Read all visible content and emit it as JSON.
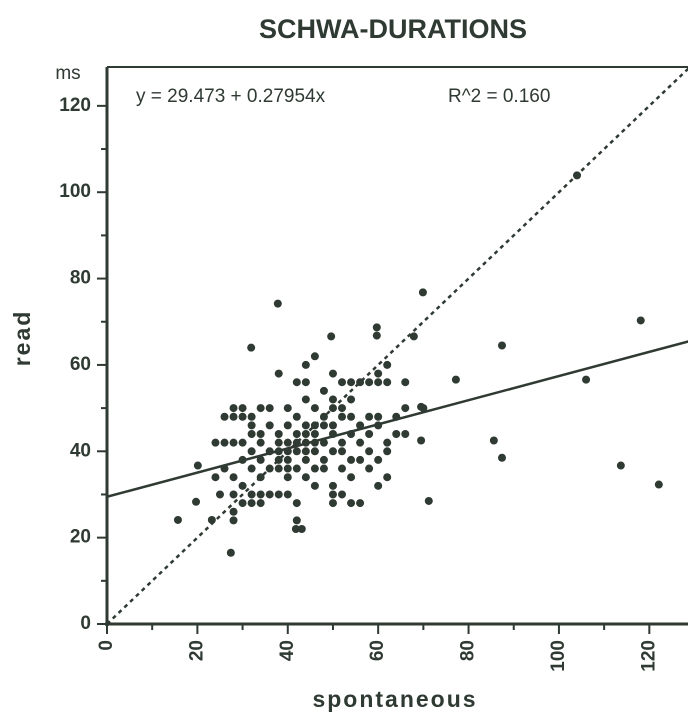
{
  "chart_data": {
    "type": "scatter",
    "title": "SCHWA-DURATIONS",
    "x_label": "spontaneous",
    "y_label": "read",
    "y_unit": "ms",
    "equation": "y = 29.473 + 0.27954x",
    "r_squared": "R^2 = 0.160",
    "fit": {
      "intercept": 29.473,
      "slope": 0.27954
    },
    "identity_line": true,
    "color": "#2f3a33",
    "xlim": [
      0,
      129
    ],
    "ylim": [
      0,
      129
    ],
    "xticks": [
      0,
      20,
      40,
      60,
      80,
      100,
      120
    ],
    "yticks": [
      0,
      20,
      40,
      60,
      80,
      100,
      120
    ],
    "x": [
      15.7,
      19.7,
      20.1,
      23.2,
      27.4,
      37.8,
      31.9,
      49.6,
      59.7,
      59.7,
      69.9,
      67.9,
      87.4,
      118.1,
      104,
      106,
      77.2,
      85.6,
      87.4,
      113.7,
      122.1,
      71.2,
      69.5,
      69.5,
      41.8,
      43.1,
      28,
      28,
      28,
      28,
      28,
      28,
      28,
      30,
      30,
      30,
      30,
      30,
      30,
      32,
      32,
      32,
      32,
      32,
      32,
      32,
      34,
      34,
      34,
      34,
      34,
      34,
      34,
      36,
      36,
      36,
      36,
      36,
      38,
      38,
      38,
      38,
      38,
      38,
      38,
      40,
      40,
      40,
      40,
      40,
      40,
      40,
      40,
      42,
      42,
      42,
      42,
      42,
      42,
      42,
      42,
      44,
      44,
      44,
      44,
      44,
      44,
      44,
      44,
      44,
      46,
      46,
      46,
      46,
      46,
      46,
      46,
      46,
      48,
      48,
      48,
      48,
      48,
      48,
      50,
      50,
      50,
      50,
      50,
      50,
      50,
      50,
      50,
      52,
      52,
      52,
      52,
      52,
      52,
      52,
      54,
      54,
      54,
      54,
      54,
      54,
      54,
      56,
      56,
      56,
      56,
      56,
      58,
      58,
      58,
      58,
      58,
      60,
      60,
      60,
      60,
      60,
      60,
      62,
      62,
      62,
      62,
      62,
      64,
      64,
      66,
      66,
      66,
      70,
      26,
      26,
      26,
      24,
      24,
      25
    ],
    "values": [
      24.1,
      28.3,
      36.7,
      24.1,
      16.5,
      74.2,
      64,
      66.6,
      68.7,
      66.8,
      76.8,
      66.6,
      64.5,
      70.3,
      103.9,
      56.6,
      56.6,
      42.5,
      38.5,
      36.7,
      32.3,
      28.5,
      42.5,
      50.3,
      22,
      22,
      48,
      50,
      42,
      34,
      30,
      26,
      24,
      42,
      38,
      32,
      28,
      48,
      50,
      44,
      40,
      36,
      30,
      28,
      46,
      48,
      50,
      44,
      42,
      34,
      30,
      28,
      38,
      46,
      40,
      36,
      30,
      50,
      58,
      44,
      40,
      38,
      36,
      30,
      42,
      50,
      46,
      42,
      40,
      38,
      36,
      34,
      30,
      56,
      48,
      44,
      42,
      40,
      36,
      28,
      24,
      60,
      56,
      52,
      46,
      44,
      42,
      40,
      38,
      34,
      62,
      50,
      46,
      44,
      42,
      40,
      36,
      32,
      54,
      48,
      46,
      42,
      38,
      36,
      58,
      52,
      50,
      46,
      44,
      40,
      32,
      30,
      28,
      56,
      50,
      48,
      42,
      40,
      36,
      30,
      56,
      52,
      48,
      44,
      38,
      34,
      28,
      56,
      46,
      42,
      38,
      28,
      56,
      48,
      44,
      40,
      36,
      58,
      56,
      48,
      46,
      38,
      32,
      60,
      56,
      42,
      40,
      34,
      48,
      44,
      56,
      50,
      44,
      50,
      48,
      42,
      36,
      42,
      34,
      30
    ]
  }
}
